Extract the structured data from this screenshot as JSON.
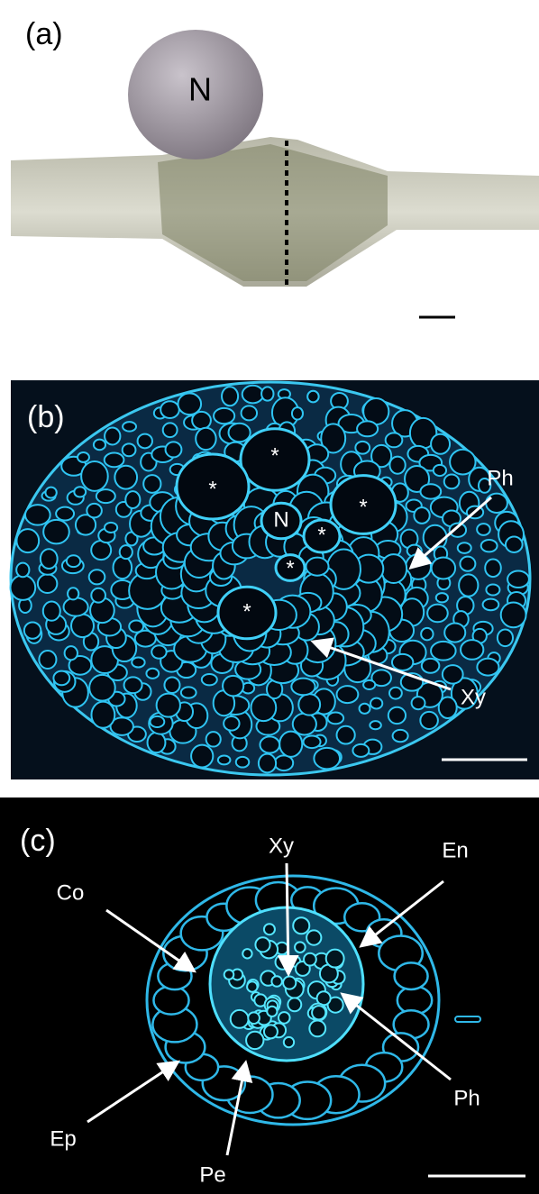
{
  "panels": [
    {
      "label": "(a)",
      "annotations": [
        "N"
      ]
    },
    {
      "label": "(b)",
      "annotations": [
        "*",
        "*",
        "*",
        "*",
        "*",
        "*",
        "N",
        "Ph",
        "Xy"
      ]
    },
    {
      "label": "(c)",
      "annotations": [
        "Xy",
        "En",
        "Co",
        "Ph",
        "Ep",
        "Pe"
      ]
    }
  ]
}
